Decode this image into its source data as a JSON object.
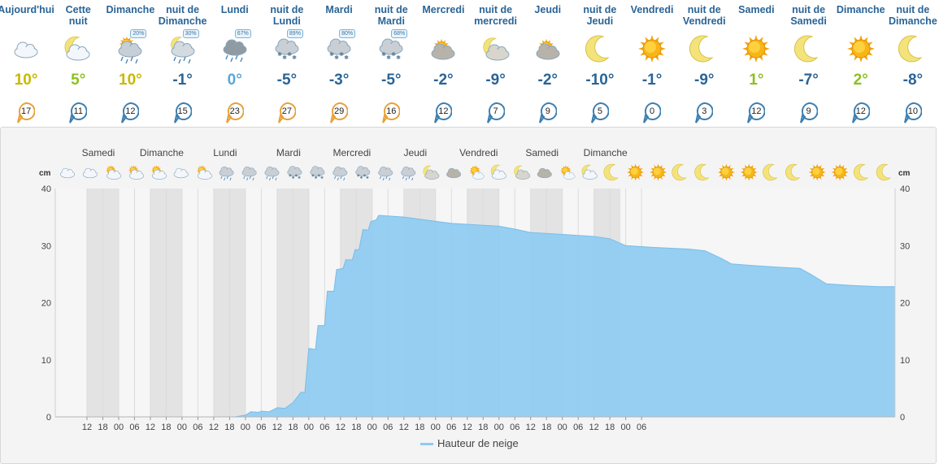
{
  "forecast": [
    {
      "label": "Aujourd'hui",
      "icon": "cloud-icon",
      "temp": "10°",
      "temp_color": "#c9b800",
      "wind": "17",
      "wind_color": "#e8a13a"
    },
    {
      "label": "Cette\nnuit",
      "icon": "cloud-night-icon",
      "temp": "5°",
      "temp_color": "#8cc11d",
      "wind": "11",
      "wind_color": "#3d7fb0"
    },
    {
      "label": "Dimanche",
      "icon": "rain-sun-icon",
      "precip": "20%",
      "temp": "10°",
      "temp_color": "#c9b800",
      "wind": "12",
      "wind_color": "#3d7fb0"
    },
    {
      "label": "nuit de\nDimanche",
      "icon": "rain-night-icon",
      "precip": "30%",
      "temp": "-1°",
      "temp_color": "#2a6496",
      "wind": "15",
      "wind_color": "#3d7fb0"
    },
    {
      "label": "Lundi",
      "icon": "rain-snow-icon",
      "precip": "67%",
      "temp": "0°",
      "temp_color": "#5ba7d8",
      "wind": "23",
      "wind_color": "#e8a13a"
    },
    {
      "label": "nuit de\nLundi",
      "icon": "snow-icon",
      "precip": "89%",
      "temp": "-5°",
      "temp_color": "#2a6496",
      "wind": "27",
      "wind_color": "#e8a13a"
    },
    {
      "label": "Mardi",
      "icon": "snow-icon",
      "precip": "80%",
      "temp": "-3°",
      "temp_color": "#2a6496",
      "wind": "29",
      "wind_color": "#e8a13a"
    },
    {
      "label": "nuit de\nMardi",
      "icon": "snow-icon",
      "precip": "68%",
      "temp": "-5°",
      "temp_color": "#2a6496",
      "wind": "16",
      "wind_color": "#e8a13a"
    },
    {
      "label": "Mercredi",
      "icon": "fog-sun-icon",
      "temp": "-2°",
      "temp_color": "#2a6496",
      "wind": "12",
      "wind_color": "#3d7fb0"
    },
    {
      "label": "nuit de\nmercredi",
      "icon": "fog-night-icon",
      "temp": "-9°",
      "temp_color": "#2a6496",
      "wind": "7",
      "wind_color": "#3d7fb0"
    },
    {
      "label": "Jeudi",
      "icon": "fog-sun-icon",
      "temp": "-2°",
      "temp_color": "#2a6496",
      "wind": "9",
      "wind_color": "#3d7fb0"
    },
    {
      "label": "nuit de\nJeudi",
      "icon": "moon-icon",
      "temp": "-10°",
      "temp_color": "#2a6496",
      "wind": "5",
      "wind_color": "#3d7fb0"
    },
    {
      "label": "Vendredi",
      "icon": "sun-icon",
      "temp": "-1°",
      "temp_color": "#2a6496",
      "wind": "0",
      "wind_color": "#3d7fb0"
    },
    {
      "label": "nuit de\nVendredi",
      "icon": "moon-icon",
      "temp": "-9°",
      "temp_color": "#2a6496",
      "wind": "3",
      "wind_color": "#3d7fb0"
    },
    {
      "label": "Samedi",
      "icon": "sun-icon",
      "temp": "1°",
      "temp_color": "#8cc11d",
      "wind": "12",
      "wind_color": "#3d7fb0"
    },
    {
      "label": "nuit de\nSamedi",
      "icon": "moon-icon",
      "temp": "-7°",
      "temp_color": "#2a6496",
      "wind": "9",
      "wind_color": "#3d7fb0"
    },
    {
      "label": "Dimanche",
      "icon": "sun-icon",
      "temp": "2°",
      "temp_color": "#8cc11d",
      "wind": "12",
      "wind_color": "#3d7fb0"
    },
    {
      "label": "nuit de\nDimanche",
      "icon": "moon-icon",
      "temp": "-8°",
      "temp_color": "#2a6496",
      "wind": "10",
      "wind_color": "#3d7fb0"
    }
  ],
  "chart_data": {
    "type": "area",
    "series": [
      {
        "name": "Hauteur de neige",
        "color": "#8ccbf2"
      }
    ],
    "legend": "bottom",
    "xlabel": "",
    "ylabel": "cm",
    "ylim": [
      0,
      40
    ],
    "yticks": [
      0,
      10,
      20,
      30,
      40
    ],
    "x_ticks": [
      "12",
      "18",
      "00",
      "06",
      "12",
      "18",
      "00",
      "06",
      "12",
      "18",
      "00",
      "06",
      "12",
      "18",
      "00",
      "06",
      "12",
      "18",
      "00",
      "06",
      "12",
      "18",
      "00",
      "06",
      "12",
      "18",
      "00",
      "06",
      "12",
      "18",
      "00",
      "06",
      "12",
      "18",
      "00",
      "06"
    ],
    "day_labels": [
      {
        "label": "Samedi",
        "tick": 0
      },
      {
        "label": "Dimanche",
        "tick": 4
      },
      {
        "label": "Lundi",
        "tick": 8
      },
      {
        "label": "Mardi",
        "tick": 12
      },
      {
        "label": "Mercredi",
        "tick": 16
      },
      {
        "label": "Jeudi",
        "tick": 20
      },
      {
        "label": "Vendredi",
        "tick": 24
      },
      {
        "label": "Samedi",
        "tick": 28
      },
      {
        "label": "Dimanche",
        "tick": 32
      }
    ],
    "hour_offset_start": -2,
    "hour_offset_end": 212,
    "night_bands": [
      [
        10,
        22
      ],
      [
        34,
        46
      ],
      [
        58,
        70
      ],
      [
        82,
        94
      ],
      [
        106,
        118
      ],
      [
        130,
        142
      ],
      [
        154,
        166
      ],
      [
        178,
        190
      ],
      [
        202,
        212
      ]
    ],
    "points": [
      [
        -2,
        0
      ],
      [
        66,
        0
      ],
      [
        70,
        0.3
      ],
      [
        72,
        0.9
      ],
      [
        75,
        0.8
      ],
      [
        76,
        1
      ],
      [
        79,
        0.9
      ],
      [
        82,
        1.6
      ],
      [
        85,
        1.5
      ],
      [
        88,
        2.5
      ],
      [
        91,
        4.3
      ],
      [
        92.5,
        4.3
      ],
      [
        94,
        12
      ],
      [
        96.5,
        11.8
      ],
      [
        97.5,
        16
      ],
      [
        100,
        16
      ],
      [
        101,
        22
      ],
      [
        103.5,
        22
      ],
      [
        104.5,
        25.8
      ],
      [
        107,
        26
      ],
      [
        108,
        27.5
      ],
      [
        110.5,
        27.5
      ],
      [
        111.5,
        29.3
      ],
      [
        113,
        29.3
      ],
      [
        114.5,
        32.8
      ],
      [
        116.5,
        32.7
      ],
      [
        117.5,
        34.2
      ],
      [
        119.5,
        34.5
      ],
      [
        120.5,
        35.3
      ],
      [
        124,
        35.2
      ],
      [
        130,
        35
      ],
      [
        138,
        34.5
      ],
      [
        148,
        33.9
      ],
      [
        166,
        33.4
      ],
      [
        172,
        32.9
      ],
      [
        178,
        32.3
      ],
      [
        192,
        31.9
      ],
      [
        202,
        31.6
      ],
      [
        208,
        31.2
      ],
      [
        214,
        30
      ],
      [
        224,
        29.7
      ],
      [
        238,
        29.4
      ],
      [
        244,
        29.1
      ],
      [
        250,
        27.8
      ],
      [
        254,
        26.8
      ],
      [
        262,
        26.5
      ],
      [
        272,
        26.2
      ],
      [
        280,
        26
      ],
      [
        284,
        25
      ],
      [
        290,
        23.3
      ],
      [
        300,
        23
      ],
      [
        310,
        22.8
      ],
      [
        316,
        22.8
      ]
    ],
    "x_max_hours": 316,
    "icons_row": [
      "cloud-icon",
      "cloud-icon",
      "cloud-sun-icon",
      "cloud-sun-icon",
      "cloud-sun-icon",
      "cloud-icon",
      "cloud-sun-icon",
      "rain-icon",
      "rain-icon",
      "rain-icon",
      "snow-icon",
      "snow-icon",
      "rain-icon",
      "snow-icon",
      "rain-icon",
      "rain-icon",
      "fog-night-icon",
      "fog-icon",
      "sun-cloud-icon",
      "cloud-night-icon",
      "fog-night-icon",
      "fog-icon",
      "sun-cloud-icon",
      "cloud-night-icon",
      "moon-icon",
      "sun-icon",
      "sun-icon",
      "moon-icon",
      "moon-icon",
      "sun-icon",
      "sun-icon",
      "moon-icon",
      "moon-icon",
      "sun-icon",
      "sun-icon",
      "moon-icon",
      "moon-icon"
    ]
  }
}
